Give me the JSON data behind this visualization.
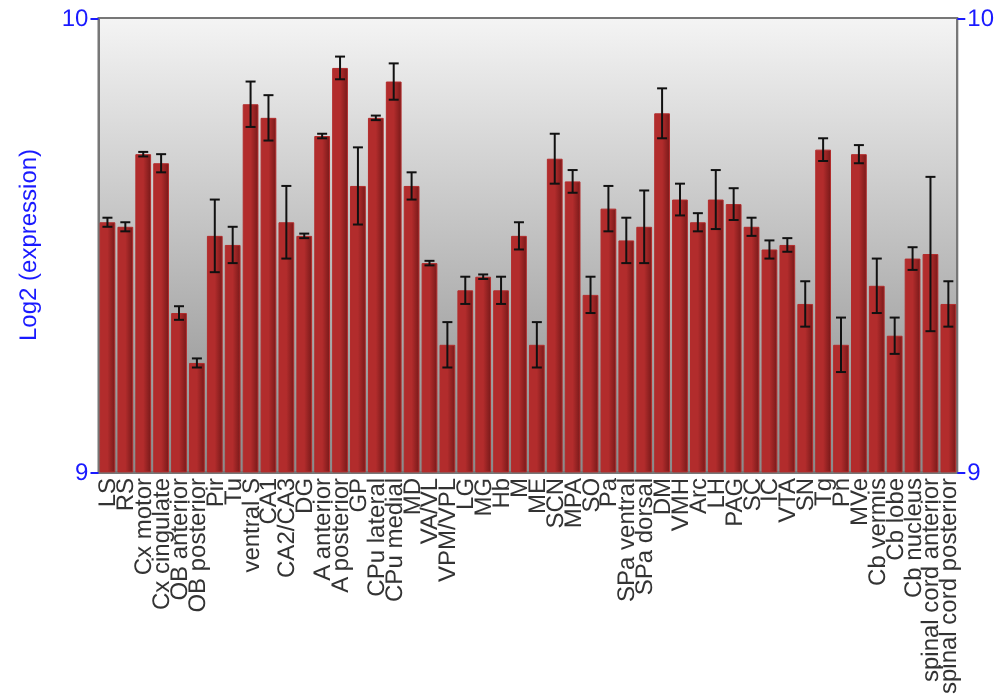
{
  "chart_data": {
    "type": "bar",
    "ylabel": "Log2 (expression)",
    "categories": [
      "LS",
      "RS",
      "Cx motor",
      "Cx cingulate",
      "OB anterior",
      "OB posterior",
      "Pir",
      "Tu",
      "ventral S",
      "CA1",
      "CA2/CA3",
      "DG",
      "A anterior",
      "A posterior",
      "GP",
      "CPu lateral",
      "CPu medial",
      "MD",
      "VA/VL",
      "VPM/VPL",
      "LG",
      "MG",
      "Hb",
      "M",
      "ME",
      "SCN",
      "MPA",
      "SO",
      "Pa",
      "SPa ventral",
      "SPa dorsal",
      "DM",
      "VMH",
      "Arc",
      "LH",
      "PAG",
      "SC",
      "IC",
      "VTA",
      "SN",
      "Tg",
      "Pn",
      "MVe",
      "Cb vermis",
      "Cb lobe",
      "Cb nucleus",
      "spinal cord anterior",
      "spinal cord posterior"
    ],
    "values": [
      9.55,
      9.54,
      9.7,
      9.68,
      9.35,
      9.24,
      9.52,
      9.5,
      9.81,
      9.78,
      9.55,
      9.52,
      9.74,
      9.89,
      9.63,
      9.78,
      9.86,
      9.63,
      9.46,
      9.28,
      9.4,
      9.43,
      9.4,
      9.52,
      9.28,
      9.69,
      9.64,
      9.39,
      9.58,
      9.51,
      9.54,
      9.79,
      9.6,
      9.55,
      9.6,
      9.59,
      9.54,
      9.49,
      9.5,
      9.37,
      9.71,
      9.28,
      9.7,
      9.41,
      9.3,
      9.47,
      9.48,
      9.37
    ],
    "errors": [
      0.01,
      0.01,
      0.005,
      0.02,
      0.015,
      0.01,
      0.08,
      0.04,
      0.05,
      0.05,
      0.08,
      0.005,
      0.005,
      0.025,
      0.085,
      0.005,
      0.04,
      0.03,
      0.005,
      0.05,
      0.03,
      0.005,
      0.03,
      0.03,
      0.05,
      0.055,
      0.025,
      0.04,
      0.05,
      0.05,
      0.08,
      0.055,
      0.035,
      0.02,
      0.065,
      0.035,
      0.02,
      0.02,
      0.015,
      0.05,
      0.025,
      0.06,
      0.02,
      0.06,
      0.04,
      0.025,
      0.17,
      0.05
    ],
    "color": "#b22c2c",
    "ylim": [
      9,
      10
    ],
    "yticks": [
      9,
      10
    ],
    "y2lim": [
      9,
      10
    ],
    "y2ticks": [
      9,
      10
    ]
  }
}
